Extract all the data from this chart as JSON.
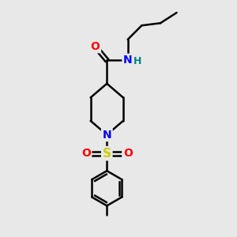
{
  "bg_color": "#e8e8e8",
  "atom_colors": {
    "O": "#ff0000",
    "N_amide": "#0000ff",
    "N_pip": "#0000ff",
    "S": "#cccc00",
    "H": "#008080",
    "C": "#000000"
  },
  "bond_color": "#000000",
  "bond_width": 1.8,
  "font_size_atom": 10,
  "S_color": "#cccc00"
}
